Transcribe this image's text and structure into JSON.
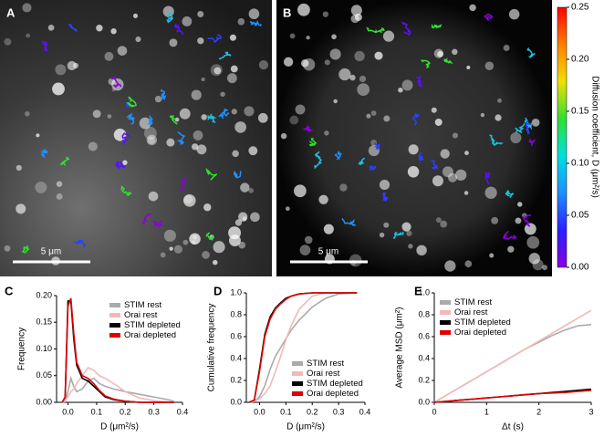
{
  "panels": [
    "A",
    "B",
    "C",
    "D",
    "E"
  ],
  "images": [
    {
      "scale_bar": "5 μm"
    },
    {
      "scale_bar": "5 μm"
    }
  ],
  "colorbar": {
    "title": "Diffusion coefficient, D (μm²/s)",
    "ylim": [
      0,
      0.25
    ],
    "yticks": [
      {
        "value": 0,
        "label": "0.00"
      },
      0.05,
      {
        "value": 0.1,
        "label": "0.10"
      },
      0.15,
      {
        "value": 0.2,
        "label": "0.20"
      },
      0.25
    ],
    "colors": [
      "#8a00e0",
      "#2a20ff",
      "#1e90ff",
      "#00e0e0",
      "#30e030",
      "#f0e000",
      "#ff8000",
      "#ff0000"
    ]
  },
  "chart_data": [
    {
      "type": "line",
      "xlabel": "D (μm²/s)",
      "ylabel": "Frequency",
      "legend": "upper right",
      "xlim": [
        -0.04,
        0.4
      ],
      "xticks": [
        {
          "value": 0,
          "label": "0.0"
        },
        0.1,
        0.2,
        0.3,
        0.4
      ],
      "ylim": [
        0,
        0.2
      ],
      "yticks": [
        {
          "value": 0,
          "label": "0.00"
        },
        0.05,
        {
          "value": 0.1,
          "label": "0.10"
        },
        0.15,
        {
          "value": 0.2,
          "label": "0.20"
        }
      ],
      "x": [
        -0.02,
        -0.01,
        0,
        0.01,
        0.02,
        0.03,
        0.05,
        0.07,
        0.09,
        0.11,
        0.13,
        0.16,
        0.2,
        0.25,
        0.3,
        0.35,
        0.37
      ],
      "series": [
        {
          "name": "STIM rest",
          "color": "#aaaaaa",
          "values": [
            0,
            0.002,
            0.02,
            0.045,
            0.03,
            0.02,
            0.025,
            0.04,
            0.045,
            0.035,
            0.03,
            0.025,
            0.02,
            0.015,
            0.01,
            0.005,
            0.002
          ]
        },
        {
          "name": "Orai rest",
          "color": "#f4b8b8",
          "values": [
            0,
            0.002,
            0.01,
            0.02,
            0.025,
            0.035,
            0.05,
            0.065,
            0.06,
            0.05,
            0.045,
            0.035,
            0.02,
            0.008,
            0.003,
            0.001,
            0
          ]
        },
        {
          "name": "STIM depleted",
          "color": "#000000",
          "values": [
            0,
            0.01,
            0.19,
            0.19,
            0.12,
            0.07,
            0.045,
            0.04,
            0.03,
            0.02,
            0.01,
            0.005,
            0.002,
            0,
            0,
            0,
            0
          ]
        },
        {
          "name": "Orai depleted",
          "color": "#e00000",
          "values": [
            0,
            0.01,
            0.18,
            0.195,
            0.13,
            0.075,
            0.05,
            0.045,
            0.035,
            0.022,
            0.012,
            0.006,
            0.002,
            0,
            0,
            0,
            0
          ]
        }
      ]
    },
    {
      "type": "line",
      "xlabel": "D (μm²/s)",
      "ylabel": "Cumulative frequency",
      "legend": "lower right",
      "xlim": [
        -0.05,
        0.4
      ],
      "xticks": [
        {
          "value": 0,
          "label": "0.0"
        },
        0.1,
        0.2,
        0.3,
        0.4
      ],
      "ylim": [
        0,
        1
      ],
      "yticks": [
        {
          "value": 0,
          "label": "0.0"
        },
        0.2,
        0.4,
        0.6,
        0.8,
        {
          "value": 1,
          "label": "1.0"
        }
      ],
      "x": [
        -0.04,
        -0.02,
        0,
        0.02,
        0.04,
        0.06,
        0.08,
        0.1,
        0.12,
        0.15,
        0.2,
        0.25,
        0.3,
        0.37
      ],
      "series": [
        {
          "name": "STIM rest",
          "color": "#aaaaaa",
          "values": [
            0,
            0.01,
            0.05,
            0.15,
            0.3,
            0.42,
            0.5,
            0.58,
            0.66,
            0.75,
            0.87,
            0.95,
            0.99,
            1
          ]
        },
        {
          "name": "Orai rest",
          "color": "#f4b8b8",
          "values": [
            0,
            0.01,
            0.03,
            0.08,
            0.15,
            0.28,
            0.42,
            0.57,
            0.7,
            0.85,
            0.97,
            1,
            1,
            1
          ]
        },
        {
          "name": "STIM depleted",
          "color": "#000000",
          "values": [
            0,
            0.02,
            0.3,
            0.62,
            0.78,
            0.86,
            0.91,
            0.95,
            0.97,
            0.99,
            1,
            1,
            1,
            1
          ]
        },
        {
          "name": "Orai depleted",
          "color": "#e00000",
          "values": [
            0,
            0.02,
            0.28,
            0.6,
            0.76,
            0.85,
            0.9,
            0.94,
            0.97,
            0.99,
            1,
            1,
            1,
            1
          ]
        }
      ]
    },
    {
      "type": "line",
      "xlabel": "Δt (s)",
      "ylabel": "Average MSD (μm²)",
      "legend": "upper left",
      "xlim": [
        0,
        3
      ],
      "xticks": [
        0,
        1,
        2,
        3
      ],
      "ylim": [
        0,
        1
      ],
      "yticks": [
        {
          "value": 0,
          "label": "0.0"
        },
        0.2,
        0.4,
        0.6,
        0.8,
        {
          "value": 1,
          "label": "1.0"
        }
      ],
      "x": [
        0,
        0.25,
        0.5,
        0.75,
        1,
        1.25,
        1.5,
        1.75,
        2,
        2.25,
        2.5,
        2.75,
        3
      ],
      "series": [
        {
          "name": "STIM rest",
          "color": "#aaaaaa",
          "values": [
            0,
            0.07,
            0.14,
            0.21,
            0.28,
            0.35,
            0.42,
            0.49,
            0.55,
            0.61,
            0.66,
            0.7,
            0.71
          ]
        },
        {
          "name": "Orai rest",
          "color": "#f4b8b8",
          "values": [
            0,
            0.07,
            0.14,
            0.21,
            0.28,
            0.35,
            0.42,
            0.49,
            0.56,
            0.63,
            0.7,
            0.77,
            0.84
          ]
        },
        {
          "name": "STIM depleted",
          "color": "#000000",
          "values": [
            0,
            0.01,
            0.02,
            0.03,
            0.04,
            0.05,
            0.06,
            0.07,
            0.08,
            0.09,
            0.1,
            0.11,
            0.12
          ]
        },
        {
          "name": "Orai depleted",
          "color": "#e00000",
          "values": [
            0,
            0.01,
            0.02,
            0.03,
            0.04,
            0.05,
            0.06,
            0.07,
            0.08,
            0.085,
            0.09,
            0.1,
            0.11
          ]
        }
      ]
    }
  ]
}
